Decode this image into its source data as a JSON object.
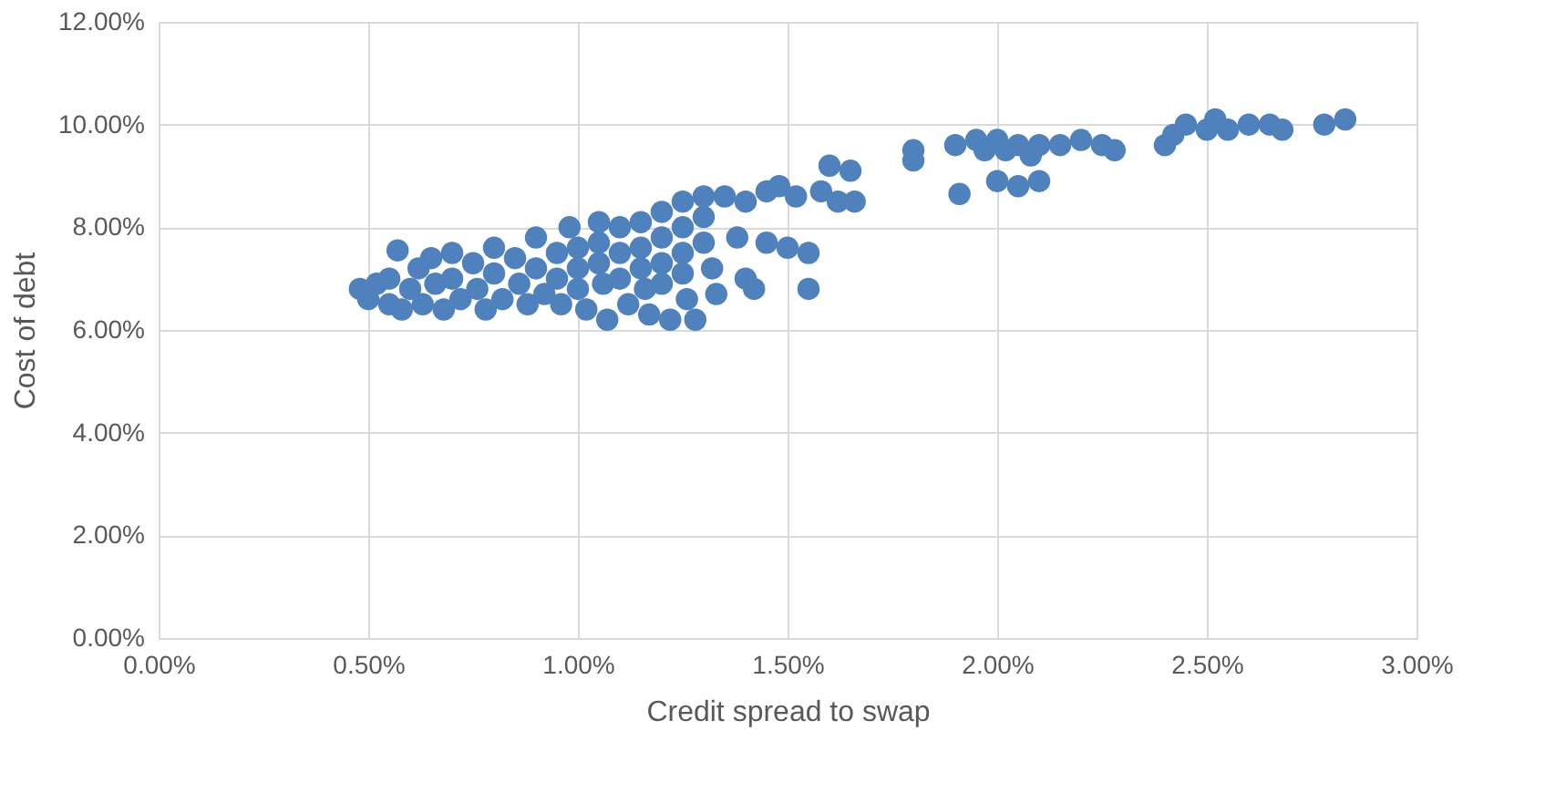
{
  "chart_data": {
    "type": "scatter",
    "xlabel": "Credit spread to swap",
    "ylabel": "Cost of debt",
    "xlim": [
      0,
      3
    ],
    "ylim": [
      0,
      12
    ],
    "xticks": [
      {
        "value": 0,
        "label": "0.00%"
      },
      {
        "value": 0.5,
        "label": "0.50%"
      },
      {
        "value": 1,
        "label": "1.00%"
      },
      {
        "value": 1.5,
        "label": "1.50%"
      },
      {
        "value": 2,
        "label": "2.00%"
      },
      {
        "value": 2.5,
        "label": "2.50%"
      },
      {
        "value": 3,
        "label": "3.00%"
      }
    ],
    "yticks": [
      {
        "value": 0,
        "label": "0.00%"
      },
      {
        "value": 2,
        "label": "2.00%"
      },
      {
        "value": 4,
        "label": "4.00%"
      },
      {
        "value": 6,
        "label": "6.00%"
      },
      {
        "value": 8,
        "label": "8.00%"
      },
      {
        "value": 10,
        "label": "10.00%"
      },
      {
        "value": 12,
        "label": "12.00%"
      }
    ],
    "grid": true,
    "marker": "circle",
    "series": [
      {
        "color": "#4f81bd",
        "x": [
          0.48,
          0.5,
          0.52,
          0.55,
          0.55,
          0.57,
          0.58,
          0.6,
          0.62,
          0.63,
          0.65,
          0.66,
          0.68,
          0.7,
          0.7,
          0.72,
          0.75,
          0.76,
          0.78,
          0.8,
          0.8,
          0.82,
          0.85,
          0.86,
          0.88,
          0.9,
          0.9,
          0.92,
          0.95,
          0.95,
          0.96,
          0.98,
          1.0,
          1.0,
          1.0,
          1.02,
          1.05,
          1.05,
          1.05,
          1.06,
          1.07,
          1.1,
          1.1,
          1.1,
          1.12,
          1.15,
          1.15,
          1.15,
          1.16,
          1.17,
          1.2,
          1.2,
          1.2,
          1.2,
          1.22,
          1.25,
          1.25,
          1.25,
          1.25,
          1.26,
          1.28,
          1.3,
          1.3,
          1.3,
          1.32,
          1.33,
          1.35,
          1.38,
          1.4,
          1.4,
          1.42,
          1.45,
          1.45,
          1.48,
          1.5,
          1.52,
          1.55,
          1.55,
          1.58,
          1.6,
          1.62,
          1.65,
          1.66,
          1.8,
          1.8,
          1.9,
          1.91,
          1.95,
          1.97,
          2.0,
          2.0,
          2.02,
          2.05,
          2.05,
          2.08,
          2.1,
          2.1,
          2.15,
          2.2,
          2.25,
          2.28,
          2.4,
          2.42,
          2.45,
          2.5,
          2.52,
          2.55,
          2.6,
          2.65,
          2.68,
          2.78,
          2.83
        ],
        "values": [
          6.8,
          6.6,
          6.9,
          6.5,
          7.0,
          7.55,
          6.4,
          6.8,
          7.2,
          6.5,
          7.4,
          6.9,
          6.4,
          7.5,
          7.0,
          6.6,
          7.3,
          6.8,
          6.4,
          7.6,
          7.1,
          6.6,
          7.4,
          6.9,
          6.5,
          7.8,
          7.2,
          6.7,
          7.5,
          7.0,
          6.5,
          8.0,
          7.6,
          7.2,
          6.8,
          6.4,
          8.1,
          7.7,
          7.3,
          6.9,
          6.2,
          8.0,
          7.5,
          7.0,
          6.5,
          8.1,
          7.6,
          7.2,
          6.8,
          6.3,
          8.3,
          7.8,
          7.3,
          6.9,
          6.2,
          8.5,
          8.0,
          7.5,
          7.1,
          6.6,
          6.2,
          8.6,
          8.2,
          7.7,
          7.2,
          6.7,
          8.6,
          7.8,
          8.5,
          7.0,
          6.8,
          8.7,
          7.7,
          8.8,
          7.6,
          8.6,
          6.8,
          7.5,
          8.7,
          9.2,
          8.5,
          9.1,
          8.5,
          9.5,
          9.3,
          9.6,
          8.65,
          9.7,
          9.5,
          9.7,
          8.9,
          9.5,
          8.8,
          9.6,
          9.4,
          8.9,
          9.6,
          9.6,
          9.7,
          9.6,
          9.5,
          9.6,
          9.8,
          10.0,
          9.9,
          10.1,
          9.9,
          10.0,
          10.0,
          9.9,
          10.0,
          10.1
        ]
      }
    ]
  }
}
